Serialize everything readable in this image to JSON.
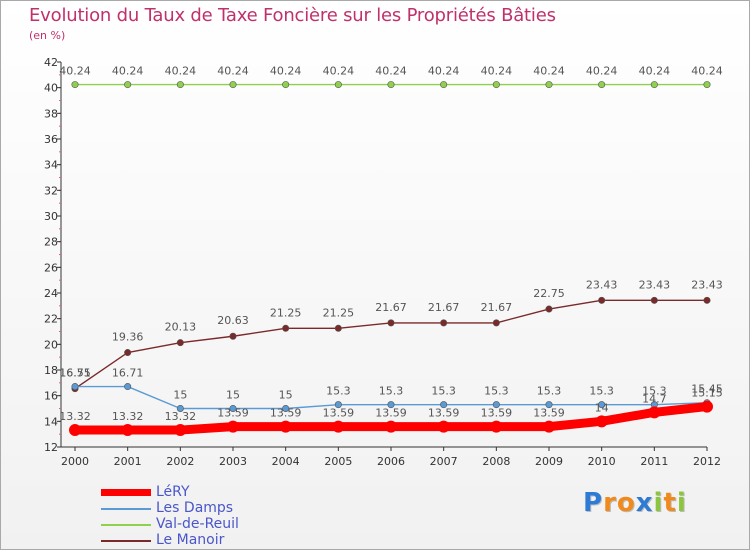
{
  "chart": {
    "title": "Evolution du Taux de Taxe Foncière sur les Propriétés Bâties",
    "subtitle": "(en %)"
  },
  "chart_data": {
    "type": "line",
    "title": "Evolution du Taux de Taxe Foncière sur les Propriétés Bâties",
    "ylabel": "(en %)",
    "xlabel": "",
    "x": [
      "2000",
      "2001",
      "2002",
      "2003",
      "2004",
      "2005",
      "2006",
      "2007",
      "2008",
      "2009",
      "2010",
      "2011",
      "2012"
    ],
    "y_ticks": [
      12,
      14,
      16,
      18,
      20,
      22,
      24,
      26,
      28,
      30,
      32,
      34,
      36,
      38,
      40,
      42
    ],
    "ylim": [
      12,
      42
    ],
    "grid": false,
    "series": [
      {
        "name": "LéRY",
        "color": "#ff0000",
        "values": [
          13.32,
          13.32,
          13.32,
          13.59,
          13.59,
          13.59,
          13.59,
          13.59,
          13.59,
          13.59,
          14,
          14.7,
          15.15
        ],
        "labels": [
          "13.32",
          "13.32",
          "13.32",
          "13.59",
          "13.59",
          "13.59",
          "13.59",
          "13.59",
          "13.59",
          "13.59",
          "14",
          "14.7",
          "15.15"
        ]
      },
      {
        "name": "Les Damps",
        "color": "#5a9bd5",
        "values": [
          16.71,
          16.71,
          15,
          15,
          15,
          15.3,
          15.3,
          15.3,
          15.3,
          15.3,
          15.3,
          15.3,
          15.45
        ],
        "labels": [
          "16.71",
          "16.71",
          "15",
          "15",
          "15",
          "15.3",
          "15.3",
          "15.3",
          "15.3",
          "15.3",
          "15.3",
          "15.3",
          "15.45"
        ]
      },
      {
        "name": "Val-de-Reuil",
        "color": "#8fd14f",
        "values": [
          40.24,
          40.24,
          40.24,
          40.24,
          40.24,
          40.24,
          40.24,
          40.24,
          40.24,
          40.24,
          40.24,
          40.24,
          40.24
        ],
        "labels": [
          "40.24",
          "40.24",
          "40.24",
          "40.24",
          "40.24",
          "40.24",
          "40.24",
          "40.24",
          "40.24",
          "40.24",
          "40.24",
          "40.24",
          "40.24"
        ]
      },
      {
        "name": "Le Manoir",
        "color": "#7a2a2a",
        "values": [
          16.55,
          19.36,
          20.13,
          20.63,
          21.25,
          21.25,
          21.67,
          21.67,
          21.67,
          22.75,
          23.43,
          23.43,
          23.43
        ],
        "labels": [
          "16.55",
          "19.36",
          "20.13",
          "20.63",
          "21.25",
          "21.25",
          "21.67",
          "21.67",
          "21.67",
          "22.75",
          "23.43",
          "23.43",
          "23.43"
        ]
      }
    ],
    "legend_position": "bottom-left"
  },
  "legend": {
    "items": [
      {
        "label": "LéRY",
        "color": "#ff0000"
      },
      {
        "label": "Les Damps",
        "color": "#5a9bd5"
      },
      {
        "label": "Val-de-Reuil",
        "color": "#8fd14f"
      },
      {
        "label": "Le Manoir",
        "color": "#7a2a2a"
      }
    ]
  },
  "brand": {
    "letters": [
      "P",
      "r",
      "o",
      "x",
      "i",
      "t",
      "i"
    ],
    "colors": [
      "#2e7bd6",
      "#f08a1c",
      "#f08a1c",
      "#2e7bd6",
      "#8cc63f",
      "#f08a1c",
      "#8cc63f"
    ]
  }
}
